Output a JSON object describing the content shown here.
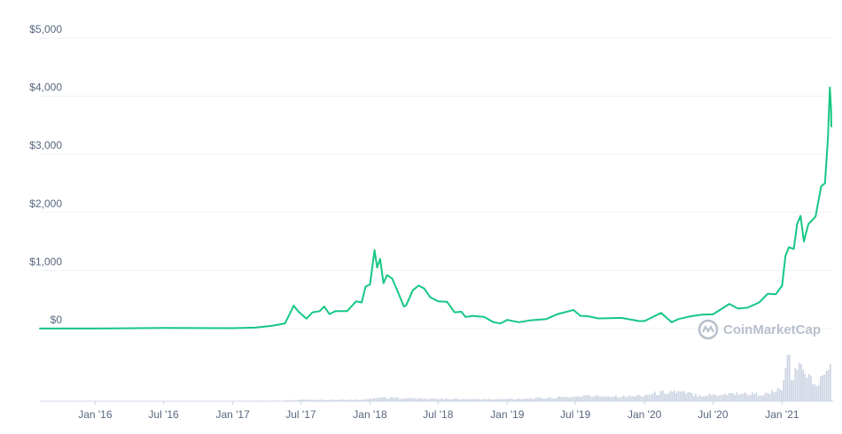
{
  "chart_data": {
    "type": "line",
    "title": "",
    "xlabel": "",
    "ylabel": "",
    "ylim": [
      0,
      5000
    ],
    "y_ticks": [
      0,
      1000,
      2000,
      3000,
      4000,
      5000
    ],
    "y_tick_labels": [
      "$0",
      "$1,000",
      "$2,000",
      "$3,000",
      "$4,000",
      "$5,000"
    ],
    "x_tick_labels": [
      "Jan '16",
      "Jul '16",
      "Jan '17",
      "Jul '17",
      "Jan '18",
      "Jul '18",
      "Jan '19",
      "Jul '19",
      "Jan '20",
      "Jul '20",
      "Jan '21"
    ],
    "x_tick_dates": [
      "2016-01-01",
      "2016-07-01",
      "2017-01-01",
      "2017-07-01",
      "2018-01-01",
      "2018-07-01",
      "2019-01-01",
      "2019-07-01",
      "2020-01-01",
      "2020-07-01",
      "2021-01-01"
    ],
    "xlim": [
      "2015-08-07",
      "2021-05-12"
    ],
    "grid": true,
    "line_color": "#16c784",
    "volume_color": "#cfd6e4",
    "series": [
      {
        "x": [
          "2015-08-07",
          "2016-01-01",
          "2016-07-01",
          "2017-01-01",
          "2017-03-01",
          "2017-04-15",
          "2017-05-20",
          "2017-06-12",
          "2017-06-25",
          "2017-07-16",
          "2017-08-01",
          "2017-08-20",
          "2017-09-01",
          "2017-09-15",
          "2017-10-01",
          "2017-11-01",
          "2017-11-25",
          "2017-12-10",
          "2017-12-20",
          "2018-01-01",
          "2018-01-13",
          "2018-01-20",
          "2018-01-28",
          "2018-02-06",
          "2018-02-15",
          "2018-03-01",
          "2018-03-15",
          "2018-04-01",
          "2018-04-07",
          "2018-04-25",
          "2018-05-10",
          "2018-05-25",
          "2018-06-10",
          "2018-07-01",
          "2018-07-25",
          "2018-08-14",
          "2018-09-01",
          "2018-09-12",
          "2018-10-01",
          "2018-11-01",
          "2018-11-25",
          "2018-12-14",
          "2019-01-01",
          "2019-02-01",
          "2019-03-01",
          "2019-04-15",
          "2019-05-15",
          "2019-06-26",
          "2019-07-15",
          "2019-08-01",
          "2019-09-01",
          "2019-10-01",
          "2019-11-01",
          "2019-12-17",
          "2020-01-01",
          "2020-02-14",
          "2020-03-13",
          "2020-04-01",
          "2020-05-01",
          "2020-06-01",
          "2020-07-01",
          "2020-08-14",
          "2020-09-05",
          "2020-10-01",
          "2020-11-01",
          "2020-11-24",
          "2020-12-15",
          "2021-01-01",
          "2021-01-10",
          "2021-01-19",
          "2021-02-01",
          "2021-02-10",
          "2021-02-19",
          "2021-02-28",
          "2021-03-12",
          "2021-03-31",
          "2021-04-15",
          "2021-04-25",
          "2021-05-03",
          "2021-05-08",
          "2021-05-11",
          "2021-05-12"
        ],
        "values": [
          1,
          1,
          12,
          8,
          17,
          48,
          90,
          395,
          290,
          170,
          280,
          300,
          380,
          250,
          300,
          300,
          470,
          450,
          720,
          760,
          1350,
          1050,
          1200,
          780,
          920,
          860,
          650,
          380,
          400,
          660,
          740,
          690,
          540,
          470,
          460,
          280,
          290,
          200,
          220,
          200,
          110,
          90,
          150,
          110,
          140,
          165,
          250,
          320,
          220,
          215,
          175,
          180,
          185,
          130,
          130,
          270,
          110,
          165,
          210,
          240,
          245,
          425,
          345,
          360,
          450,
          600,
          590,
          740,
          1250,
          1400,
          1370,
          1800,
          1940,
          1500,
          1800,
          1930,
          2450,
          2500,
          3300,
          4150,
          3800,
          3480
        ]
      }
    ],
    "volume": {
      "note_units": "relative",
      "x": [
        "2015-08-07",
        "2017-05-01",
        "2017-07-01",
        "2017-12-15",
        "2018-01-15",
        "2018-06-01",
        "2018-12-01",
        "2019-05-01",
        "2019-08-01",
        "2019-12-01",
        "2020-03-12",
        "2020-06-01",
        "2020-09-01",
        "2020-11-15",
        "2020-12-20",
        "2021-01-05",
        "2021-01-15",
        "2021-01-25",
        "2021-02-10",
        "2021-02-22",
        "2021-03-10",
        "2021-03-25",
        "2021-04-10",
        "2021-04-25",
        "2021-05-05",
        "2021-05-12"
      ],
      "values": [
        0,
        1,
        3,
        3,
        8,
        5,
        4,
        7,
        11,
        10,
        20,
        12,
        16,
        14,
        22,
        35,
        95,
        45,
        60,
        80,
        50,
        35,
        40,
        55,
        70,
        75
      ]
    }
  },
  "watermark": {
    "text": "CoinMarketCap",
    "icon": "coinmarketcap-logo-icon"
  }
}
